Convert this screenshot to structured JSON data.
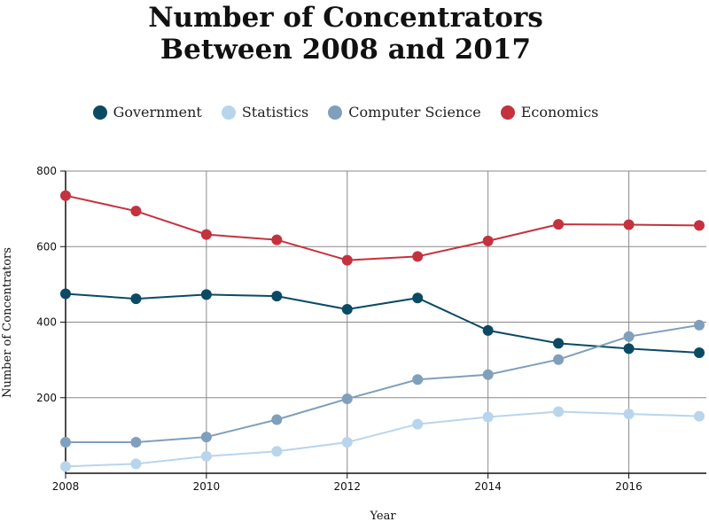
{
  "chart_data": {
    "type": "line",
    "title_line1": "Number of Concentrators",
    "title_line2": "Between 2008 and 2017",
    "xlabel": "Year",
    "ylabel": "Number of Concentrators",
    "xlim": [
      2008,
      2017
    ],
    "ylim": [
      0,
      800
    ],
    "x_ticks": [
      2008,
      2010,
      2012,
      2014,
      2016
    ],
    "y_ticks": [
      200,
      400,
      600,
      800
    ],
    "grid": true,
    "legend_position": "top-center",
    "x": [
      2008,
      2009,
      2010,
      2011,
      2012,
      2013,
      2014,
      2015,
      2016,
      2017
    ],
    "series": [
      {
        "name": "Government",
        "color": "#0b4a63",
        "values": [
          475,
          462,
          473,
          469,
          434,
          464,
          378,
          344,
          330,
          319
        ]
      },
      {
        "name": "Statistics",
        "color": "#b8d5ec",
        "values": [
          18,
          25,
          45,
          58,
          82,
          130,
          149,
          163,
          157,
          151
        ]
      },
      {
        "name": "Computer Science",
        "color": "#7f9fbd",
        "values": [
          82,
          82,
          96,
          142,
          197,
          248,
          261,
          301,
          362,
          392
        ]
      },
      {
        "name": "Economics",
        "color": "#c4323e",
        "values": [
          735,
          694,
          632,
          618,
          564,
          574,
          615,
          659,
          658,
          656
        ]
      }
    ]
  }
}
